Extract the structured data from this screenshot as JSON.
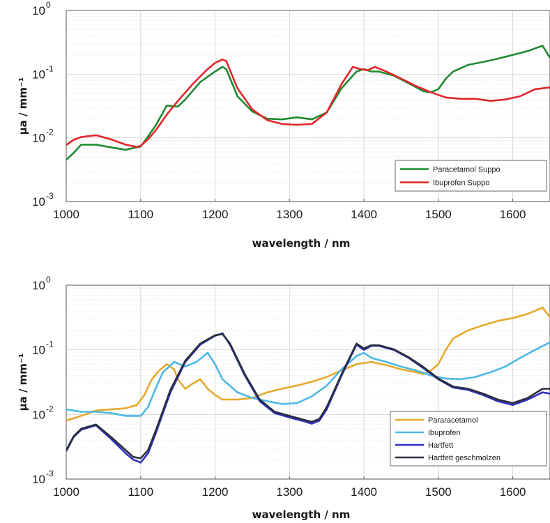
{
  "chart_data": [
    {
      "type": "line",
      "xlabel": "wavelength / nm",
      "ylabel": "µa / mm⁻¹",
      "yscale": "log",
      "xlim": [
        1000,
        1650
      ],
      "ylim": [
        0.001,
        1
      ],
      "xticks": [
        "1000",
        "1100",
        "1200",
        "1300",
        "1400",
        "1500",
        "1600"
      ],
      "yticks": [
        {
          "base": "10",
          "exp": "0"
        },
        {
          "base": "10",
          "exp": "-1"
        },
        {
          "base": "10",
          "exp": "-2"
        },
        {
          "base": "10",
          "exp": "-3"
        }
      ],
      "grid": true,
      "legend_position": "bottom-right",
      "series": [
        {
          "name": "Paracetamol Suppo",
          "color": "#1e8a2e",
          "x": [
            1000,
            1010,
            1020,
            1040,
            1060,
            1080,
            1090,
            1100,
            1110,
            1120,
            1130,
            1135,
            1150,
            1160,
            1180,
            1200,
            1210,
            1215,
            1230,
            1250,
            1270,
            1290,
            1310,
            1330,
            1350,
            1370,
            1390,
            1400,
            1410,
            1420,
            1440,
            1460,
            1480,
            1490,
            1500,
            1510,
            1520,
            1540,
            1560,
            1580,
            1600,
            1620,
            1640,
            1650
          ],
          "y": [
            0.0045,
            0.0058,
            0.0078,
            0.0078,
            0.0071,
            0.0065,
            0.0069,
            0.0073,
            0.0105,
            0.0155,
            0.025,
            0.032,
            0.031,
            0.04,
            0.075,
            0.11,
            0.13,
            0.12,
            0.045,
            0.026,
            0.02,
            0.0195,
            0.021,
            0.0195,
            0.025,
            0.06,
            0.11,
            0.12,
            0.11,
            0.11,
            0.095,
            0.072,
            0.054,
            0.052,
            0.058,
            0.085,
            0.11,
            0.14,
            0.155,
            0.175,
            0.2,
            0.23,
            0.28,
            0.18
          ]
        },
        {
          "name": "Ibuprofen Suppo",
          "color": "#e0262a",
          "x": [
            1000,
            1010,
            1020,
            1040,
            1060,
            1080,
            1095,
            1100,
            1110,
            1120,
            1135,
            1150,
            1170,
            1190,
            1200,
            1210,
            1215,
            1230,
            1250,
            1270,
            1290,
            1310,
            1330,
            1350,
            1370,
            1385,
            1395,
            1405,
            1415,
            1430,
            1450,
            1470,
            1490,
            1510,
            1530,
            1550,
            1570,
            1590,
            1610,
            1630,
            1650
          ],
          "y": [
            0.0077,
            0.0093,
            0.0103,
            0.011,
            0.0095,
            0.0078,
            0.0072,
            0.0075,
            0.0095,
            0.013,
            0.023,
            0.038,
            0.07,
            0.12,
            0.15,
            0.17,
            0.16,
            0.06,
            0.028,
            0.019,
            0.0165,
            0.016,
            0.0165,
            0.025,
            0.07,
            0.13,
            0.12,
            0.115,
            0.13,
            0.11,
            0.085,
            0.065,
            0.052,
            0.043,
            0.041,
            0.041,
            0.038,
            0.04,
            0.045,
            0.058,
            0.062
          ]
        }
      ]
    },
    {
      "type": "line",
      "xlabel": "wavelength / nm",
      "ylabel": "µa / mm⁻¹",
      "yscale": "log",
      "xlim": [
        1000,
        1650
      ],
      "ylim": [
        0.001,
        1
      ],
      "xticks": [
        "1000",
        "1100",
        "1200",
        "1300",
        "1400",
        "1500",
        "1600"
      ],
      "yticks": [
        {
          "base": "10",
          "exp": "0"
        },
        {
          "base": "10",
          "exp": "-1"
        },
        {
          "base": "10",
          "exp": "-2"
        },
        {
          "base": "10",
          "exp": "-3"
        }
      ],
      "grid": true,
      "legend_position": "bottom-right",
      "series": [
        {
          "name": "Pararacetamol",
          "color": "#e5a92a",
          "x": [
            1000,
            1020,
            1040,
            1060,
            1080,
            1095,
            1105,
            1115,
            1125,
            1135,
            1145,
            1150,
            1160,
            1170,
            1180,
            1190,
            1200,
            1210,
            1230,
            1250,
            1270,
            1290,
            1310,
            1330,
            1350,
            1370,
            1390,
            1410,
            1430,
            1450,
            1470,
            1480,
            1490,
            1500,
            1510,
            1520,
            1540,
            1560,
            1580,
            1600,
            1620,
            1640,
            1650
          ],
          "y": [
            0.008,
            0.0095,
            0.0115,
            0.012,
            0.0125,
            0.014,
            0.02,
            0.035,
            0.048,
            0.06,
            0.05,
            0.035,
            0.025,
            0.03,
            0.035,
            0.025,
            0.02,
            0.017,
            0.017,
            0.018,
            0.022,
            0.025,
            0.028,
            0.032,
            0.038,
            0.048,
            0.06,
            0.065,
            0.058,
            0.05,
            0.045,
            0.042,
            0.048,
            0.06,
            0.1,
            0.15,
            0.2,
            0.24,
            0.28,
            0.31,
            0.36,
            0.45,
            0.32
          ]
        },
        {
          "name": "Ibuprofen",
          "color": "#4cb8e6",
          "x": [
            1000,
            1020,
            1040,
            1060,
            1080,
            1100,
            1110,
            1120,
            1130,
            1145,
            1160,
            1175,
            1190,
            1200,
            1210,
            1230,
            1250,
            1270,
            1290,
            1310,
            1330,
            1350,
            1370,
            1390,
            1400,
            1410,
            1430,
            1450,
            1470,
            1490,
            1510,
            1530,
            1550,
            1570,
            1590,
            1610,
            1630,
            1650
          ],
          "y": [
            0.012,
            0.011,
            0.011,
            0.0105,
            0.0095,
            0.0095,
            0.013,
            0.025,
            0.045,
            0.065,
            0.055,
            0.065,
            0.09,
            0.06,
            0.035,
            0.022,
            0.018,
            0.016,
            0.0145,
            0.015,
            0.019,
            0.028,
            0.05,
            0.08,
            0.09,
            0.075,
            0.065,
            0.055,
            0.048,
            0.04,
            0.036,
            0.035,
            0.038,
            0.045,
            0.055,
            0.075,
            0.1,
            0.13
          ]
        },
        {
          "name": "Hartfett",
          "color": "#2f2fc4",
          "x": [
            1000,
            1010,
            1020,
            1040,
            1060,
            1080,
            1090,
            1100,
            1110,
            1120,
            1140,
            1160,
            1180,
            1200,
            1210,
            1220,
            1240,
            1260,
            1280,
            1300,
            1320,
            1330,
            1340,
            1350,
            1370,
            1390,
            1400,
            1410,
            1420,
            1440,
            1460,
            1480,
            1500,
            1520,
            1540,
            1560,
            1580,
            1600,
            1620,
            1640,
            1650
          ],
          "y": [
            0.0027,
            0.0045,
            0.0058,
            0.0068,
            0.0042,
            0.0025,
            0.002,
            0.0018,
            0.0025,
            0.005,
            0.022,
            0.065,
            0.12,
            0.165,
            0.18,
            0.12,
            0.04,
            0.016,
            0.0105,
            0.009,
            0.0078,
            0.0072,
            0.008,
            0.012,
            0.04,
            0.12,
            0.1,
            0.115,
            0.115,
            0.1,
            0.075,
            0.052,
            0.035,
            0.026,
            0.024,
            0.02,
            0.016,
            0.014,
            0.017,
            0.022,
            0.021
          ]
        },
        {
          "name": "Hartfett geschmolzen",
          "color": "#2a2f3a",
          "x": [
            1000,
            1010,
            1020,
            1040,
            1060,
            1080,
            1090,
            1100,
            1110,
            1120,
            1140,
            1160,
            1180,
            1200,
            1210,
            1220,
            1240,
            1260,
            1280,
            1300,
            1320,
            1330,
            1340,
            1350,
            1370,
            1390,
            1400,
            1410,
            1420,
            1440,
            1460,
            1480,
            1500,
            1520,
            1540,
            1560,
            1580,
            1600,
            1620,
            1640,
            1650
          ],
          "y": [
            0.0028,
            0.0046,
            0.006,
            0.007,
            0.0045,
            0.0028,
            0.0022,
            0.0021,
            0.0028,
            0.0055,
            0.024,
            0.068,
            0.125,
            0.168,
            0.175,
            0.125,
            0.042,
            0.017,
            0.011,
            0.0095,
            0.0082,
            0.0077,
            0.0085,
            0.013,
            0.042,
            0.125,
            0.105,
            0.118,
            0.118,
            0.102,
            0.077,
            0.054,
            0.036,
            0.027,
            0.025,
            0.021,
            0.017,
            0.015,
            0.018,
            0.025,
            0.025
          ]
        }
      ]
    }
  ]
}
